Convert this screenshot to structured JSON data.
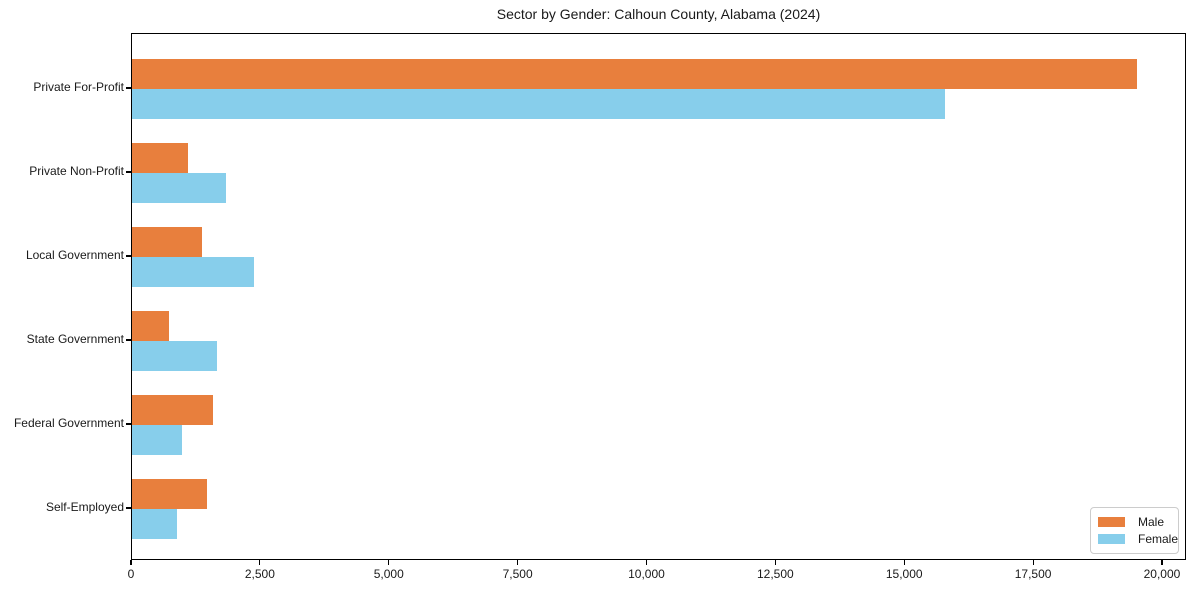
{
  "figure": {
    "background": "#ffffff",
    "text_color": "#1a1a1a"
  },
  "chart_data": {
    "type": "bar",
    "orientation": "horizontal",
    "title": "Sector by Gender: Calhoun County, Alabama (2024)",
    "xlabel": "",
    "ylabel": "",
    "categories": [
      "Private For-Profit",
      "Private Non-Profit",
      "Local Government",
      "State Government",
      "Federal Government",
      "Self-Employed"
    ],
    "series": [
      {
        "name": "Male",
        "color": "#e87f3d",
        "values": [
          19500,
          1090,
          1360,
          720,
          1570,
          1450
        ]
      },
      {
        "name": "Female",
        "color": "#87ceeb",
        "values": [
          15770,
          1820,
          2370,
          1650,
          970,
          870
        ]
      }
    ],
    "xlim": [
      0,
      20466
    ],
    "x_ticks": [
      0,
      2500,
      5000,
      7500,
      10000,
      12500,
      15000,
      17500,
      20000
    ],
    "x_tick_labels": [
      "0",
      "2,500",
      "5,000",
      "7,500",
      "10,000",
      "12,500",
      "15,000",
      "17,500",
      "20,000"
    ],
    "grid": "off",
    "legend": {
      "position": "lower right",
      "entries": [
        "Male",
        "Female"
      ]
    }
  }
}
